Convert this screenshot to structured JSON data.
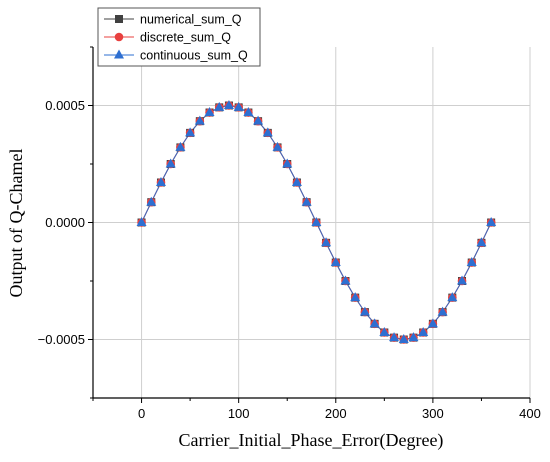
{
  "chart_data": {
    "type": "line",
    "title": "",
    "xlabel": "Carrier_Initial_Phase_Error(Degree)",
    "ylabel": "Output of Q-Chamel",
    "xlim": [
      -50,
      400
    ],
    "ylim": [
      -0.00075,
      0.00075
    ],
    "xticks": [
      0,
      100,
      200,
      300,
      400
    ],
    "xtick_labels": [
      "0",
      "100",
      "200",
      "300",
      "400"
    ],
    "yticks": [
      -0.0005,
      0,
      0.0005
    ],
    "ytick_labels": [
      "−0.0005",
      "0.0000",
      "0.0005"
    ],
    "grid": true,
    "legend_position": "top-left",
    "x": [
      0,
      10,
      20,
      30,
      40,
      50,
      60,
      70,
      80,
      90,
      100,
      110,
      120,
      130,
      140,
      150,
      160,
      170,
      180,
      190,
      200,
      210,
      220,
      230,
      240,
      250,
      260,
      270,
      280,
      290,
      300,
      310,
      320,
      330,
      340,
      350,
      360
    ],
    "series": [
      {
        "name": "numerical_sum_Q",
        "marker": "square",
        "color": "#404040",
        "values": [
          0,
          8.68e-05,
          0.000171,
          0.00025,
          0.000321,
          0.000383,
          0.000433,
          0.00047,
          0.000492,
          0.0005,
          0.000492,
          0.00047,
          0.000433,
          0.000383,
          0.000321,
          0.00025,
          0.000171,
          8.68e-05,
          0,
          -8.68e-05,
          -0.000171,
          -0.00025,
          -0.000321,
          -0.000383,
          -0.000433,
          -0.00047,
          -0.000492,
          -0.0005,
          -0.000492,
          -0.00047,
          -0.000433,
          -0.000383,
          -0.000321,
          -0.00025,
          -0.000171,
          -8.68e-05,
          0
        ]
      },
      {
        "name": "discrete_sum_Q",
        "marker": "circle",
        "color": "#e8403f",
        "values": [
          0,
          8.68e-05,
          0.000171,
          0.00025,
          0.000321,
          0.000383,
          0.000433,
          0.00047,
          0.000492,
          0.0005,
          0.000492,
          0.00047,
          0.000433,
          0.000383,
          0.000321,
          0.00025,
          0.000171,
          8.68e-05,
          0,
          -8.68e-05,
          -0.000171,
          -0.00025,
          -0.000321,
          -0.000383,
          -0.000433,
          -0.00047,
          -0.000492,
          -0.0005,
          -0.000492,
          -0.00047,
          -0.000433,
          -0.000383,
          -0.000321,
          -0.00025,
          -0.000171,
          -8.68e-05,
          0
        ]
      },
      {
        "name": "continuous_sum_Q",
        "marker": "triangle",
        "color": "#2e6fd1",
        "values": [
          0,
          8.68e-05,
          0.000171,
          0.00025,
          0.000321,
          0.000383,
          0.000433,
          0.00047,
          0.000492,
          0.0005,
          0.000492,
          0.00047,
          0.000433,
          0.000383,
          0.000321,
          0.00025,
          0.000171,
          8.68e-05,
          0,
          -8.68e-05,
          -0.000171,
          -0.00025,
          -0.000321,
          -0.000383,
          -0.000433,
          -0.00047,
          -0.000492,
          -0.0005,
          -0.000492,
          -0.00047,
          -0.000433,
          -0.000383,
          -0.000321,
          -0.00025,
          -0.000171,
          -8.68e-05,
          0
        ]
      }
    ]
  }
}
